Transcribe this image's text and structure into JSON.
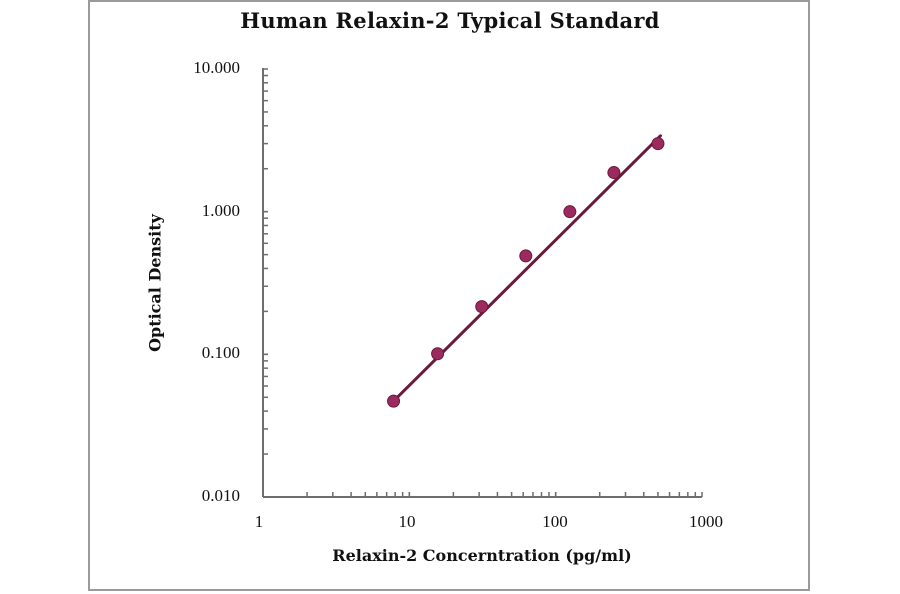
{
  "chart_data": {
    "type": "scatter",
    "title": "Human Relaxin-2 Typical Standard",
    "xlabel": "Relaxin-2 Concerntration (pg/ml)",
    "ylabel": "Optical Density",
    "x_scale": "log",
    "y_scale": "log",
    "xlim": [
      1,
      1000
    ],
    "ylim": [
      0.01,
      10
    ],
    "x_tick_labels": [
      "1",
      "10",
      "100",
      "1000"
    ],
    "y_tick_labels": [
      "10.000",
      "1.000",
      "0.100",
      "0.010"
    ],
    "grid": false,
    "legend": null,
    "series": [
      {
        "name": "Standard",
        "marker": "circle",
        "color": "#9c2a5e",
        "x": [
          7.8,
          15.6,
          31.25,
          62.5,
          125,
          250,
          500
        ],
        "y": [
          0.047,
          0.101,
          0.216,
          0.49,
          1.0,
          1.88,
          3.0
        ]
      },
      {
        "name": "Fit line",
        "type": "line",
        "color": "#6b1a3a",
        "x": [
          7.8,
          520
        ],
        "y": [
          0.047,
          3.4
        ]
      }
    ]
  },
  "axes": {
    "y_ticks": [
      {
        "label": "10.000",
        "value": 10
      },
      {
        "label": "1.000",
        "value": 1
      },
      {
        "label": "0.100",
        "value": 0.1
      },
      {
        "label": "0.010",
        "value": 0.01
      }
    ],
    "x_ticks": [
      {
        "label": "1",
        "value": 1
      },
      {
        "label": "10",
        "value": 10
      },
      {
        "label": "100",
        "value": 100
      },
      {
        "label": "1000",
        "value": 1000
      }
    ]
  }
}
